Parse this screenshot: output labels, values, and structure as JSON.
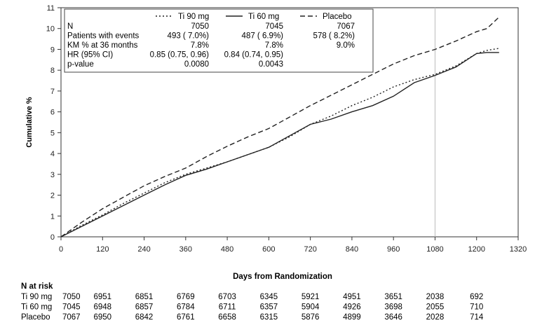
{
  "chart_data": {
    "type": "line",
    "ylabel": "Cumulative %",
    "xlabel": "Days from Randomization",
    "xlim": [
      0,
      1320
    ],
    "ylim": [
      0,
      11
    ],
    "xticks": [
      0,
      120,
      240,
      360,
      480,
      600,
      720,
      840,
      960,
      1080,
      1200,
      1320
    ],
    "yticks": [
      0,
      1,
      2,
      3,
      4,
      5,
      6,
      7,
      8,
      9,
      10,
      11
    ],
    "reference_line_x": 1080,
    "series": [
      {
        "name": "Ti 90 mg",
        "style": "dotted",
        "x": [
          0,
          60,
          120,
          180,
          240,
          300,
          360,
          420,
          480,
          540,
          600,
          660,
          720,
          780,
          840,
          900,
          960,
          1020,
          1080,
          1140,
          1200,
          1230,
          1265
        ],
        "y": [
          0,
          0.55,
          1.05,
          1.6,
          2.1,
          2.6,
          3.0,
          3.3,
          3.6,
          3.95,
          4.3,
          4.8,
          5.4,
          5.8,
          6.3,
          6.7,
          7.2,
          7.55,
          7.8,
          8.2,
          8.8,
          8.95,
          9.05
        ]
      },
      {
        "name": "Ti 60 mg",
        "style": "solid",
        "x": [
          0,
          60,
          120,
          180,
          240,
          300,
          360,
          420,
          480,
          540,
          600,
          660,
          720,
          780,
          840,
          900,
          960,
          1020,
          1080,
          1140,
          1200,
          1230,
          1265
        ],
        "y": [
          0,
          0.5,
          1.0,
          1.5,
          2.0,
          2.5,
          2.95,
          3.25,
          3.6,
          3.95,
          4.3,
          4.85,
          5.4,
          5.65,
          6.0,
          6.3,
          6.75,
          7.4,
          7.75,
          8.15,
          8.8,
          8.85,
          8.85
        ]
      },
      {
        "name": "Placebo",
        "style": "dashed",
        "x": [
          0,
          60,
          120,
          180,
          240,
          300,
          360,
          420,
          480,
          540,
          600,
          660,
          720,
          780,
          840,
          900,
          960,
          1020,
          1080,
          1140,
          1200,
          1230,
          1265
        ],
        "y": [
          0,
          0.7,
          1.35,
          1.9,
          2.45,
          2.9,
          3.3,
          3.85,
          4.35,
          4.8,
          5.2,
          5.75,
          6.3,
          6.8,
          7.3,
          7.8,
          8.3,
          8.7,
          9.0,
          9.4,
          9.85,
          10.0,
          10.55
        ]
      }
    ],
    "legend": {
      "placement": "top-left",
      "columns": [
        "Ti 90 mg",
        "Ti 60 mg",
        "Placebo"
      ],
      "rows": [
        {
          "label": "N",
          "values": [
            "7050",
            "7045",
            "7067"
          ]
        },
        {
          "label": "Patients with events",
          "values": [
            "493 ( 7.0%)",
            "487 ( 6.9%)",
            "578 ( 8.2%)"
          ]
        },
        {
          "label": "KM % at 36 months",
          "values": [
            "7.8%",
            "7.8%",
            "9.0%"
          ]
        },
        {
          "label": "HR (95% CI)",
          "values": [
            "0.85 (0.75, 0.96)",
            "0.84 (0.74, 0.95)",
            ""
          ]
        },
        {
          "label": "p-value",
          "values": [
            "0.0080",
            "0.0043",
            ""
          ]
        }
      ]
    },
    "risk_table": {
      "title": "N at risk",
      "rows": [
        {
          "label": "Ti 90 mg",
          "values": [
            "7050",
            "6951",
            "6851",
            "6769",
            "6703",
            "6345",
            "5921",
            "4951",
            "3651",
            "2038",
            "692"
          ]
        },
        {
          "label": "Ti 60 mg",
          "values": [
            "7045",
            "6948",
            "6857",
            "6784",
            "6711",
            "6357",
            "5904",
            "4926",
            "3698",
            "2055",
            "710"
          ]
        },
        {
          "label": "Placebo",
          "values": [
            "7067",
            "6950",
            "6842",
            "6761",
            "6658",
            "6315",
            "5876",
            "4899",
            "3646",
            "2028",
            "714"
          ]
        }
      ]
    }
  }
}
